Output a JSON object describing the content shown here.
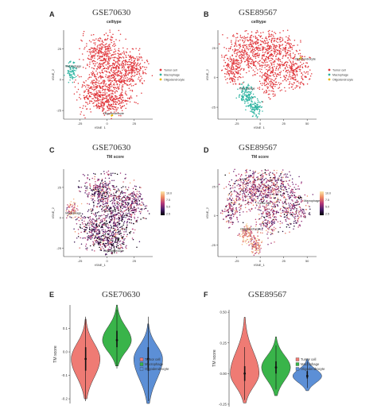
{
  "figure": {
    "panels": [
      {
        "letter": "A",
        "dataset": "GSE70630",
        "subtitle": "celltype"
      },
      {
        "letter": "B",
        "dataset": "GSE89567",
        "subtitle": "celltype"
      },
      {
        "letter": "C",
        "dataset": "GSE70630",
        "subtitle": "TM score"
      },
      {
        "letter": "D",
        "dataset": "GSE89567",
        "subtitle": "TM score"
      },
      {
        "letter": "E",
        "dataset": "GSE70630",
        "subtitle": ""
      },
      {
        "letter": "F",
        "dataset": "GSE89567",
        "subtitle": ""
      }
    ]
  },
  "colors": {
    "tumor": "#e0363b",
    "macrophage": "#2bb3a0",
    "oligodendrocyte": "#e8b800",
    "violin_tumor": "#ef7b74",
    "violin_macrophage": "#39b44a",
    "violin_oligo": "#5c8fd6",
    "gradient": [
      "#000000",
      "#4b1f6e",
      "#b5367a",
      "#f08a60",
      "#fbe7a8"
    ]
  },
  "chart_data": [
    {
      "panel": "A",
      "type": "scatter",
      "title": "celltype",
      "xlabel": "tSNE_1",
      "ylabel": "tSNE_2",
      "xlim": [
        -40,
        42
      ],
      "ylim": [
        -32,
        40
      ],
      "xticks": [
        -25,
        0,
        25
      ],
      "yticks": [
        -25,
        0,
        25
      ],
      "legend": [
        "Tumor cell",
        "Macrophage",
        "Oligodendrocyte"
      ],
      "annotations": [
        "Macrophage",
        "Oligodendrocyte"
      ]
    },
    {
      "panel": "B",
      "type": "scatter",
      "title": "celltype",
      "xlabel": "tSNE_1",
      "ylabel": "tSNE_2",
      "xlim": [
        -45,
        60
      ],
      "ylim": [
        -35,
        40
      ],
      "xticks": [
        -25,
        0,
        25,
        50
      ],
      "yticks": [
        -25,
        0,
        25
      ],
      "legend": [
        "Tumor cell",
        "Macrophage",
        "Oligodendrocyte"
      ],
      "annotations": [
        "Oligodendrocyte",
        "Macrophage"
      ]
    },
    {
      "panel": "C",
      "type": "scatter",
      "title": "TM score",
      "xlabel": "tSNE_1",
      "ylabel": "tSNE_2",
      "xlim": [
        -40,
        42
      ],
      "ylim": [
        -32,
        40
      ],
      "xticks": [
        -25,
        0,
        25
      ],
      "yticks": [
        -25,
        0,
        25
      ],
      "colorbar": {
        "ticks": [
          "10.0",
          "7.5",
          "5.0",
          "2.5"
        ]
      },
      "annotations": [
        "Tumor cell",
        "Macrophage",
        "Oligodendrocyte"
      ]
    },
    {
      "panel": "D",
      "type": "scatter",
      "title": "TM score",
      "xlabel": "tSNE_1",
      "ylabel": "tSNE_2",
      "xlim": [
        -45,
        60
      ],
      "ylim": [
        -35,
        40
      ],
      "xticks": [
        -25,
        0,
        25,
        50
      ],
      "yticks": [
        -25,
        0,
        25
      ],
      "colorbar": {
        "ticks": [
          "10.0",
          "7.5",
          "5.0",
          "2.5"
        ]
      },
      "annotations": [
        "Tumor cell",
        "Macrophage",
        "Oligodendrocyte"
      ]
    },
    {
      "panel": "E",
      "type": "violin",
      "ylabel": "TM score",
      "ylim": [
        -0.22,
        0.2
      ],
      "yticks": [
        0.1,
        0.0,
        -0.1,
        -0.2
      ],
      "yticklabels": [
        "0.1",
        "0.0",
        "-0.1",
        "-0.2"
      ],
      "categories": [
        "Tumor cell",
        "Macrophage",
        "Oligodendrocyte"
      ],
      "median": [
        -0.03,
        0.05,
        -0.03
      ],
      "q1": [
        -0.08,
        0.02,
        -0.08
      ],
      "q3": [
        0.02,
        0.09,
        0.02
      ],
      "range": [
        [
          -0.2,
          0.14
        ],
        [
          -0.06,
          0.2
        ],
        [
          -0.22,
          0.12
        ]
      ]
    },
    {
      "panel": "F",
      "type": "violin",
      "ylabel": "TM score",
      "ylim": [
        -0.27,
        0.52
      ],
      "yticks": [
        0.5,
        0.25,
        0.0,
        -0.25
      ],
      "yticklabels": [
        "0.50",
        "0.25",
        "0.00",
        "-0.25"
      ],
      "categories": [
        "Tumor cell",
        "Macrophage",
        "Oligodendrocyte"
      ],
      "median": [
        0.0,
        0.05,
        -0.02
      ],
      "q1": [
        -0.06,
        0.0,
        -0.04
      ],
      "q3": [
        0.06,
        0.1,
        0.02
      ],
      "range": [
        [
          -0.24,
          0.46
        ],
        [
          -0.18,
          0.3
        ],
        [
          -0.14,
          0.12
        ]
      ]
    }
  ]
}
